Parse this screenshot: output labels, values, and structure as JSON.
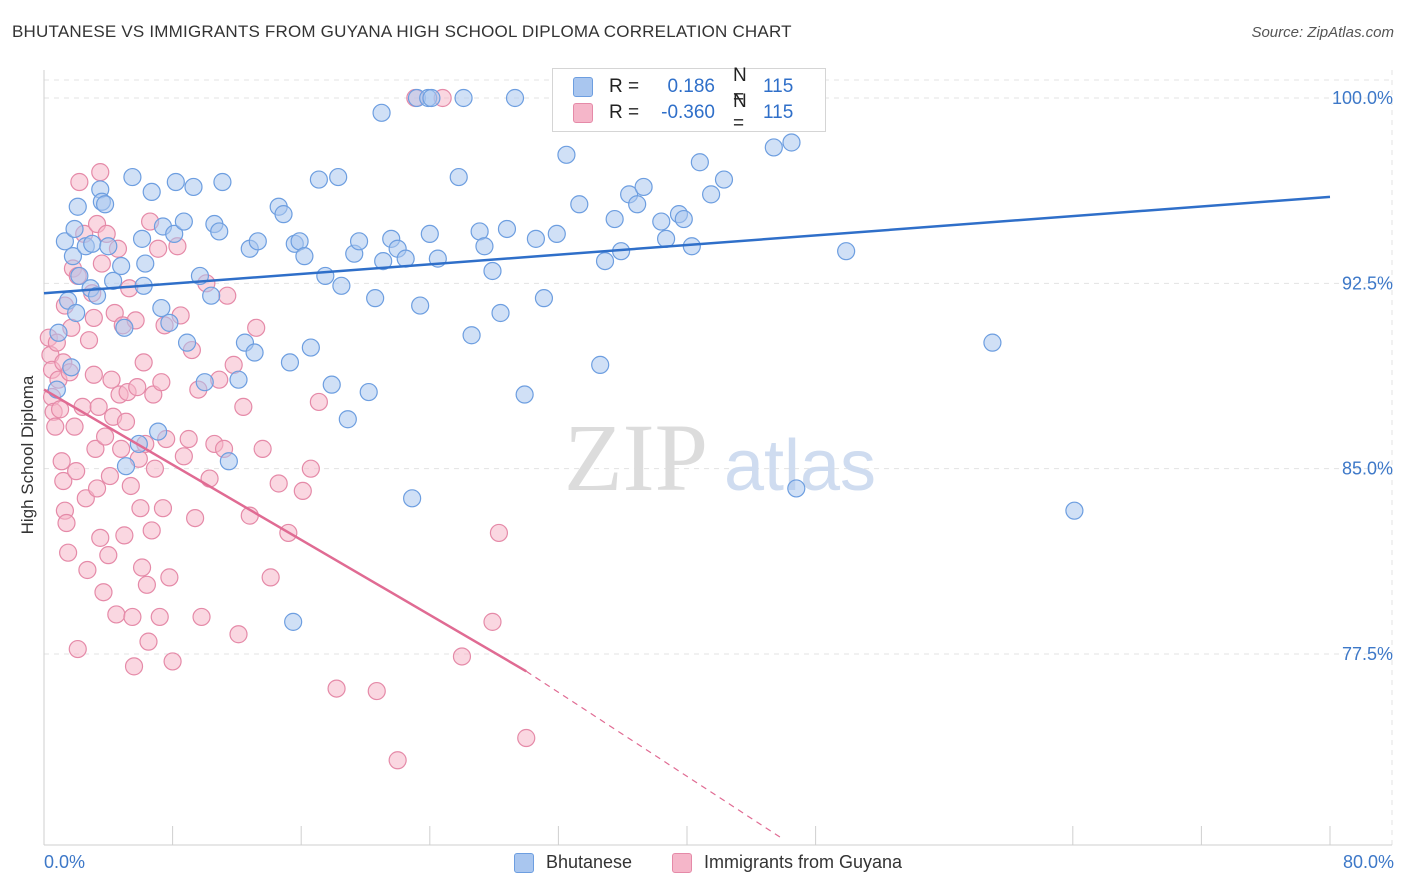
{
  "header": {
    "title": "BHUTANESE VS IMMIGRANTS FROM GUYANA HIGH SCHOOL DIPLOMA CORRELATION CHART",
    "source": "Source: ZipAtlas.com"
  },
  "watermark": {
    "zip": "ZIP",
    "atlas": "atlas"
  },
  "legend": {
    "rows": [
      {
        "r_label": "R =",
        "r_value": "0.186",
        "n_label": "N =",
        "n_value": "115",
        "color": "#a9c6ef"
      },
      {
        "r_label": "R =",
        "r_value": "-0.360",
        "n_label": "N =",
        "n_value": "115",
        "color": "#f5b6c9"
      }
    ]
  },
  "colors": {
    "blue_fill": "#a9c6ef",
    "blue_stroke": "#6d9ee0",
    "blue_line": "#2f6fc9",
    "pink_fill": "#f5b6c9",
    "pink_stroke": "#e58aa8",
    "pink_line": "#e06b93",
    "grid": "#e3e3e3",
    "tick_label": "#3d78c8"
  },
  "chart_data": {
    "type": "scatter",
    "title": "BHUTANESE VS IMMIGRANTS FROM GUYANA HIGH SCHOOL DIPLOMA CORRELATION CHART",
    "xlabel": "",
    "ylabel": "High School Diploma",
    "xlim": [
      0,
      80
    ],
    "ylim": [
      70.0,
      100.3
    ],
    "x_tick_labels": [
      "0.0%",
      "80.0%"
    ],
    "y_ticks": [
      77.5,
      85.0,
      92.5,
      100.0
    ],
    "y_tick_labels": [
      "77.5%",
      "85.0%",
      "92.5%",
      "100.0%"
    ],
    "grid": true,
    "legend_placement": "top-center",
    "series": [
      {
        "name": "Bhutanese",
        "r": 0.186,
        "n": 115,
        "trend": {
          "x0": 0,
          "y0": 92.1,
          "x1": 80,
          "y1": 96.0
        },
        "points": [
          [
            0.8,
            88.2
          ],
          [
            0.9,
            90.5
          ],
          [
            1.3,
            94.2
          ],
          [
            1.5,
            91.8
          ],
          [
            1.7,
            89.1
          ],
          [
            1.8,
            93.6
          ],
          [
            1.9,
            94.7
          ],
          [
            2.0,
            91.3
          ],
          [
            2.1,
            95.6
          ],
          [
            2.2,
            92.8
          ],
          [
            2.6,
            94.0
          ],
          [
            2.9,
            92.3
          ],
          [
            3.0,
            94.1
          ],
          [
            3.3,
            92.0
          ],
          [
            3.5,
            96.3
          ],
          [
            3.6,
            95.8
          ],
          [
            3.8,
            95.7
          ],
          [
            4.0,
            94.0
          ],
          [
            4.3,
            92.6
          ],
          [
            4.8,
            93.2
          ],
          [
            5.0,
            90.7
          ],
          [
            5.1,
            85.1
          ],
          [
            5.5,
            96.8
          ],
          [
            5.9,
            86.0
          ],
          [
            6.1,
            94.3
          ],
          [
            6.2,
            92.4
          ],
          [
            6.3,
            93.3
          ],
          [
            6.7,
            96.2
          ],
          [
            7.1,
            86.5
          ],
          [
            7.3,
            91.5
          ],
          [
            7.4,
            94.8
          ],
          [
            7.8,
            90.9
          ],
          [
            8.1,
            94.5
          ],
          [
            8.2,
            96.6
          ],
          [
            8.7,
            95.0
          ],
          [
            8.9,
            90.1
          ],
          [
            9.3,
            96.4
          ],
          [
            9.7,
            92.8
          ],
          [
            10.0,
            88.5
          ],
          [
            10.4,
            92.0
          ],
          [
            10.6,
            94.9
          ],
          [
            10.9,
            94.6
          ],
          [
            11.1,
            96.6
          ],
          [
            11.5,
            85.3
          ],
          [
            12.1,
            88.6
          ],
          [
            12.5,
            90.1
          ],
          [
            12.8,
            93.9
          ],
          [
            15.5,
            78.8
          ],
          [
            13.1,
            89.7
          ],
          [
            13.3,
            94.2
          ],
          [
            14.6,
            95.6
          ],
          [
            14.9,
            95.3
          ],
          [
            15.3,
            89.3
          ],
          [
            15.6,
            94.1
          ],
          [
            15.9,
            94.2
          ],
          [
            16.2,
            93.6
          ],
          [
            16.6,
            89.9
          ],
          [
            17.1,
            96.7
          ],
          [
            17.5,
            92.8
          ],
          [
            17.9,
            88.4
          ],
          [
            18.3,
            96.8
          ],
          [
            18.5,
            92.4
          ],
          [
            18.9,
            87.0
          ],
          [
            19.3,
            93.7
          ],
          [
            19.6,
            94.2
          ],
          [
            20.2,
            88.1
          ],
          [
            20.6,
            91.9
          ],
          [
            21.1,
            93.4
          ],
          [
            21.6,
            94.3
          ],
          [
            22.0,
            93.9
          ],
          [
            22.5,
            93.5
          ],
          [
            22.9,
            83.8
          ],
          [
            23.4,
            91.6
          ],
          [
            24.0,
            94.5
          ],
          [
            24.5,
            93.5
          ],
          [
            25.8,
            96.8
          ],
          [
            26.6,
            90.4
          ],
          [
            27.1,
            94.6
          ],
          [
            27.4,
            94.0
          ],
          [
            27.9,
            93.0
          ],
          [
            28.4,
            91.3
          ],
          [
            28.8,
            94.7
          ],
          [
            29.9,
            88.0
          ],
          [
            30.6,
            94.3
          ],
          [
            31.1,
            91.9
          ],
          [
            31.9,
            94.5
          ],
          [
            32.5,
            97.7
          ],
          [
            33.3,
            95.7
          ],
          [
            34.6,
            89.2
          ],
          [
            34.9,
            93.4
          ],
          [
            35.5,
            95.1
          ],
          [
            35.9,
            93.8
          ],
          [
            36.4,
            96.1
          ],
          [
            36.9,
            95.7
          ],
          [
            37.3,
            96.4
          ],
          [
            38.4,
            95.0
          ],
          [
            38.7,
            94.3
          ],
          [
            39.5,
            95.3
          ],
          [
            39.8,
            95.1
          ],
          [
            40.3,
            94.0
          ],
          [
            40.8,
            97.4
          ],
          [
            41.5,
            96.1
          ],
          [
            42.3,
            96.7
          ],
          [
            45.4,
            98.0
          ],
          [
            46.5,
            98.2
          ],
          [
            46.8,
            84.2
          ],
          [
            49.9,
            93.8
          ],
          [
            59.0,
            90.1
          ],
          [
            64.1,
            83.3
          ],
          [
            21.0,
            99.4
          ],
          [
            23.2,
            100.0
          ],
          [
            23.9,
            100.0
          ],
          [
            24.1,
            100.0
          ],
          [
            26.1,
            100.0
          ],
          [
            29.3,
            100.0
          ]
        ]
      },
      {
        "name": "Immigrants from Guyana",
        "r": -0.36,
        "n": 115,
        "trend": {
          "x0": 0,
          "y0": 88.2,
          "x1": 30,
          "y1": 76.8,
          "dashed_to": {
            "x": 46,
            "y": 70.0
          }
        },
        "points": [
          [
            0.3,
            90.3
          ],
          [
            0.4,
            89.6
          ],
          [
            0.5,
            89.0
          ],
          [
            0.5,
            87.9
          ],
          [
            0.6,
            87.3
          ],
          [
            0.7,
            86.7
          ],
          [
            0.8,
            90.1
          ],
          [
            0.9,
            88.6
          ],
          [
            1.0,
            87.4
          ],
          [
            1.1,
            85.3
          ],
          [
            1.2,
            84.5
          ],
          [
            1.2,
            89.3
          ],
          [
            1.3,
            83.3
          ],
          [
            1.3,
            91.6
          ],
          [
            1.4,
            82.8
          ],
          [
            1.5,
            81.6
          ],
          [
            1.6,
            88.9
          ],
          [
            1.7,
            90.7
          ],
          [
            1.8,
            93.1
          ],
          [
            1.9,
            86.7
          ],
          [
            2.0,
            84.9
          ],
          [
            2.1,
            92.8
          ],
          [
            2.1,
            77.7
          ],
          [
            2.2,
            96.6
          ],
          [
            2.4,
            87.5
          ],
          [
            2.5,
            94.5
          ],
          [
            2.6,
            83.8
          ],
          [
            2.7,
            80.9
          ],
          [
            2.8,
            90.2
          ],
          [
            3.0,
            92.1
          ],
          [
            3.1,
            91.1
          ],
          [
            3.1,
            88.8
          ],
          [
            3.2,
            85.8
          ],
          [
            3.3,
            84.2
          ],
          [
            3.3,
            94.9
          ],
          [
            3.4,
            87.5
          ],
          [
            3.5,
            82.2
          ],
          [
            3.5,
            97.0
          ],
          [
            3.6,
            93.3
          ],
          [
            3.7,
            80.0
          ],
          [
            3.8,
            86.3
          ],
          [
            3.9,
            94.5
          ],
          [
            4.0,
            81.5
          ],
          [
            4.1,
            84.7
          ],
          [
            4.2,
            88.6
          ],
          [
            4.3,
            87.1
          ],
          [
            4.4,
            91.3
          ],
          [
            4.5,
            79.1
          ],
          [
            4.6,
            93.9
          ],
          [
            4.7,
            88.0
          ],
          [
            4.8,
            85.8
          ],
          [
            4.9,
            90.8
          ],
          [
            5.0,
            82.3
          ],
          [
            5.1,
            86.9
          ],
          [
            5.2,
            88.1
          ],
          [
            5.3,
            92.3
          ],
          [
            5.4,
            84.3
          ],
          [
            5.5,
            79.0
          ],
          [
            5.6,
            77.0
          ],
          [
            5.7,
            91.0
          ],
          [
            5.8,
            88.3
          ],
          [
            5.9,
            85.4
          ],
          [
            6.0,
            83.4
          ],
          [
            6.1,
            81.0
          ],
          [
            6.2,
            89.3
          ],
          [
            6.3,
            86.0
          ],
          [
            6.4,
            80.3
          ],
          [
            6.5,
            78.0
          ],
          [
            6.6,
            95.0
          ],
          [
            6.7,
            82.5
          ],
          [
            6.8,
            88.0
          ],
          [
            6.9,
            85.0
          ],
          [
            7.1,
            93.9
          ],
          [
            7.2,
            79.0
          ],
          [
            7.3,
            88.5
          ],
          [
            7.4,
            83.4
          ],
          [
            7.5,
            90.8
          ],
          [
            7.6,
            86.2
          ],
          [
            7.8,
            80.6
          ],
          [
            8.0,
            77.2
          ],
          [
            8.3,
            94.0
          ],
          [
            8.5,
            91.2
          ],
          [
            8.7,
            85.5
          ],
          [
            9.0,
            86.2
          ],
          [
            9.2,
            89.8
          ],
          [
            9.4,
            83.0
          ],
          [
            9.6,
            88.2
          ],
          [
            9.8,
            79.0
          ],
          [
            10.1,
            92.5
          ],
          [
            10.3,
            84.6
          ],
          [
            10.6,
            86.0
          ],
          [
            10.9,
            88.6
          ],
          [
            11.2,
            85.8
          ],
          [
            11.4,
            92.0
          ],
          [
            11.8,
            89.2
          ],
          [
            12.1,
            78.3
          ],
          [
            12.4,
            87.5
          ],
          [
            12.8,
            83.1
          ],
          [
            13.2,
            90.7
          ],
          [
            13.6,
            85.8
          ],
          [
            14.1,
            80.6
          ],
          [
            14.6,
            84.4
          ],
          [
            15.2,
            82.4
          ],
          [
            16.1,
            84.1
          ],
          [
            16.6,
            85.0
          ],
          [
            17.1,
            87.7
          ],
          [
            18.2,
            76.1
          ],
          [
            20.7,
            76.0
          ],
          [
            22.0,
            73.2
          ],
          [
            23.1,
            100.0
          ],
          [
            24.8,
            100.0
          ],
          [
            26.0,
            77.4
          ],
          [
            27.9,
            78.8
          ],
          [
            28.3,
            82.4
          ],
          [
            30.0,
            74.1
          ]
        ]
      }
    ]
  }
}
